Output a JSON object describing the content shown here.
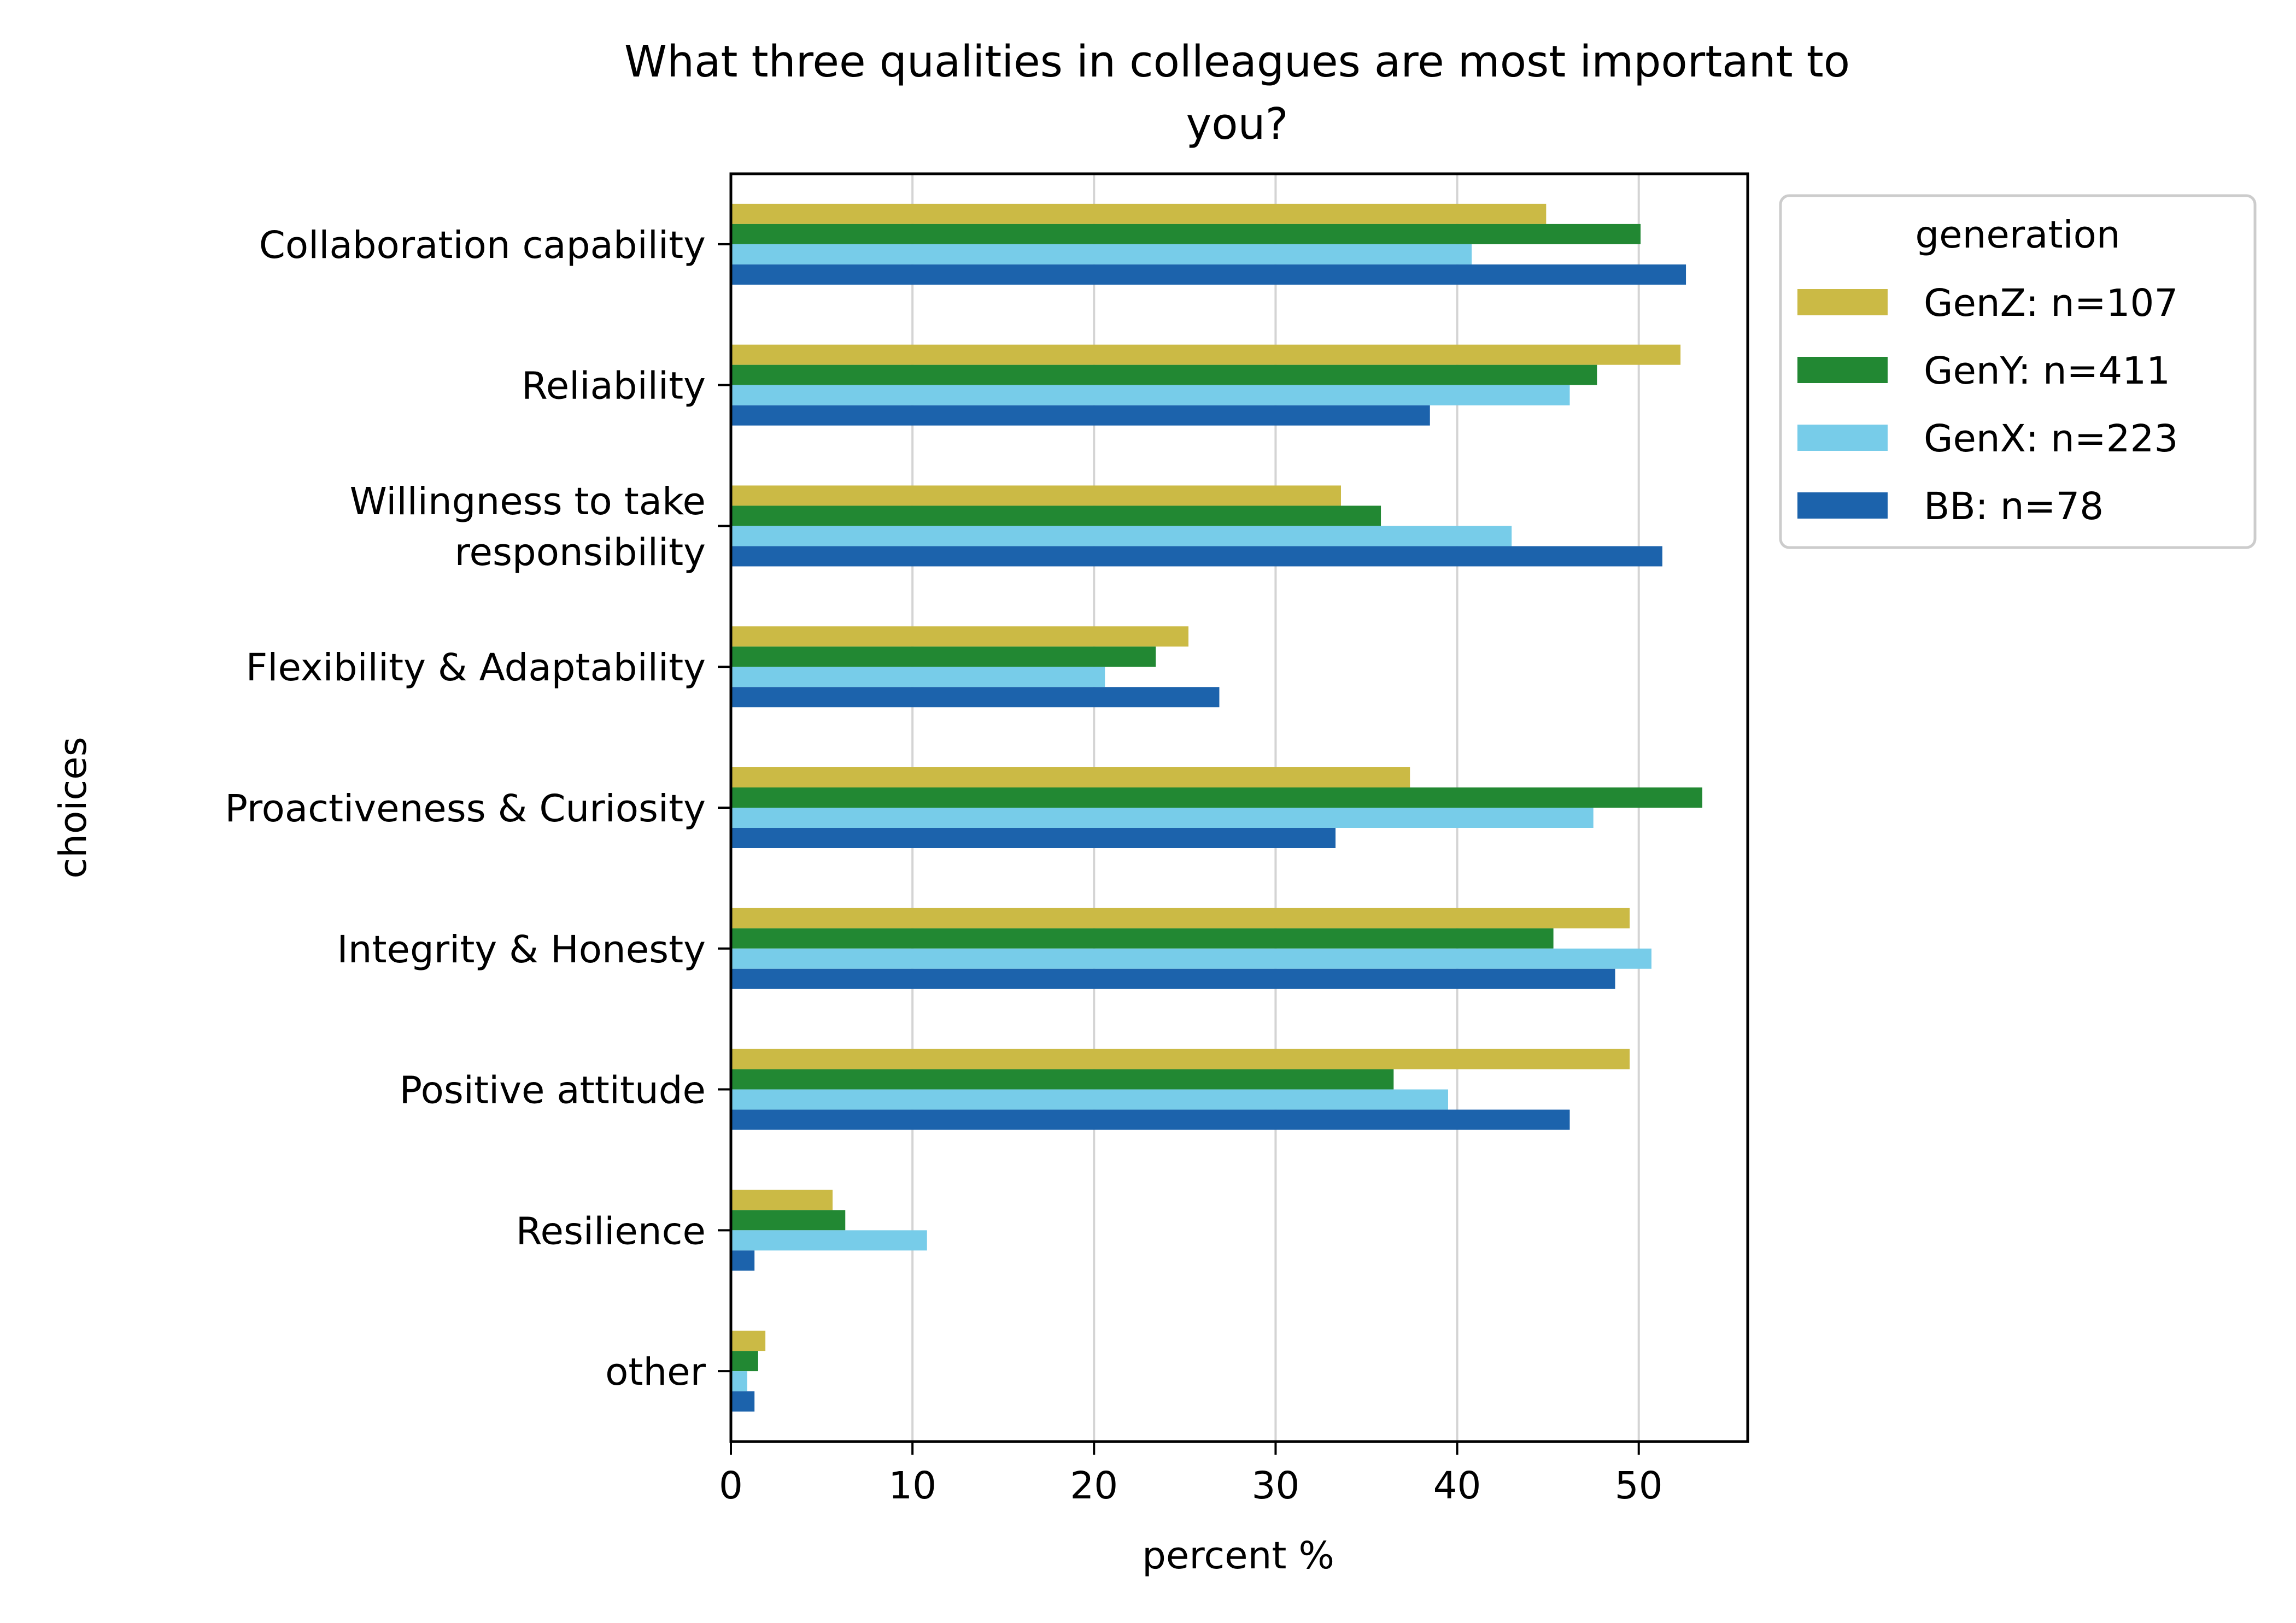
{
  "chart_data": {
    "type": "bar",
    "orientation": "horizontal",
    "title": "What three qualities in colleagues are most important to you?",
    "title_lines": [
      "What three qualities in colleagues are most important to",
      "you?"
    ],
    "xlabel": "percent %",
    "ylabel": "choices",
    "xlim": [
      0,
      56
    ],
    "xticks": [
      "0",
      "10",
      "20",
      "30",
      "40",
      "50"
    ],
    "xtick_values": [
      0,
      10,
      20,
      30,
      40,
      50
    ],
    "grid": "x",
    "legend": {
      "title": "generation",
      "placement": "outside-top-right"
    },
    "categories": [
      "Collaboration capability",
      "Reliability",
      "Willingness to take responsibility",
      "Flexibility & Adaptability",
      "Proactiveness & Curiosity",
      "Integrity & Honesty",
      "Positive attitude",
      "Resilience",
      "other"
    ],
    "category_lines": [
      [
        "Collaboration capability"
      ],
      [
        "Reliability"
      ],
      [
        "Willingness to take",
        "responsibility"
      ],
      [
        "Flexibility & Adaptability"
      ],
      [
        "Proactiveness & Curiosity"
      ],
      [
        "Integrity & Honesty"
      ],
      [
        "Positive attitude"
      ],
      [
        "Resilience"
      ],
      [
        "other"
      ]
    ],
    "series": [
      {
        "name": "GenZ: n=107",
        "color": "#cbba45",
        "values": [
          44.9,
          52.3,
          33.6,
          25.2,
          37.4,
          49.5,
          49.5,
          5.6,
          1.9
        ]
      },
      {
        "name": "GenY: n=411",
        "color": "#228833",
        "values": [
          50.1,
          47.7,
          35.8,
          23.4,
          53.5,
          45.3,
          36.5,
          6.3,
          1.5
        ]
      },
      {
        "name": "GenX: n=223",
        "color": "#77cce9",
        "values": [
          40.8,
          46.2,
          43.0,
          20.6,
          47.5,
          50.7,
          39.5,
          10.8,
          0.9
        ]
      },
      {
        "name": "BB: n=78",
        "color": "#1c63ac",
        "values": [
          52.6,
          38.5,
          51.3,
          26.9,
          33.3,
          48.7,
          46.2,
          1.3,
          1.3
        ]
      }
    ]
  }
}
